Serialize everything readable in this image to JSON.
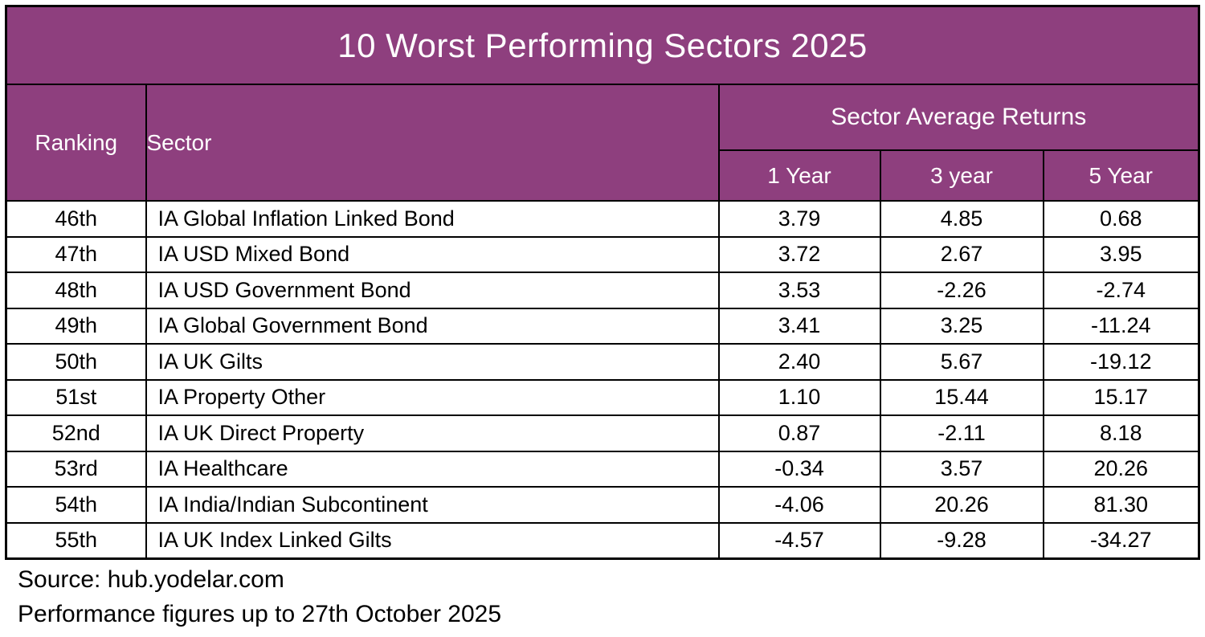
{
  "title": "10 Worst Performing Sectors 2025",
  "colors": {
    "header_background": "#8E3F7E",
    "header_text": "#FFFFFF",
    "grid_border": "#000000",
    "body_text": "#000000",
    "row_background": "#FFFFFF"
  },
  "headers": {
    "ranking": "Ranking",
    "sector": "Sector",
    "returns_group": "Sector Average Returns",
    "year1": "1 Year",
    "year3": "3 year",
    "year5": "5 Year"
  },
  "table": {
    "rows": [
      {
        "rank": "46th",
        "sector": "IA Global Inflation Linked Bond",
        "y1": "3.79",
        "y3": "4.85",
        "y5": "0.68"
      },
      {
        "rank": "47th",
        "sector": "IA USD Mixed Bond",
        "y1": "3.72",
        "y3": "2.67",
        "y5": "3.95"
      },
      {
        "rank": "48th",
        "sector": "IA USD Government Bond",
        "y1": "3.53",
        "y3": "-2.26",
        "y5": "-2.74"
      },
      {
        "rank": "49th",
        "sector": "IA Global Government Bond",
        "y1": "3.41",
        "y3": "3.25",
        "y5": "-11.24"
      },
      {
        "rank": "50th",
        "sector": "IA UK Gilts",
        "y1": "2.40",
        "y3": "5.67",
        "y5": "-19.12"
      },
      {
        "rank": "51st",
        "sector": "IA Property Other",
        "y1": "1.10",
        "y3": "15.44",
        "y5": "15.17"
      },
      {
        "rank": "52nd",
        "sector": "IA UK Direct Property",
        "y1": "0.87",
        "y3": "-2.11",
        "y5": "8.18"
      },
      {
        "rank": "53rd",
        "sector": "IA Healthcare",
        "y1": "-0.34",
        "y3": "3.57",
        "y5": "20.26"
      },
      {
        "rank": "54th",
        "sector": "IA India/Indian Subcontinent",
        "y1": "-4.06",
        "y3": "20.26",
        "y5": "81.30"
      },
      {
        "rank": "55th",
        "sector": "IA UK Index Linked Gilts",
        "y1": "-4.57",
        "y3": "-9.28",
        "y5": "-34.27"
      }
    ]
  },
  "footer": {
    "source": "Source: hub.yodelar.com",
    "note": "Performance figures up to 27th October 2025"
  },
  "chart_data": {
    "type": "table",
    "title": "10 Worst Performing Sectors 2025",
    "columns": [
      "Ranking",
      "Sector",
      "1 Year",
      "3 year",
      "5 Year"
    ],
    "column_group": {
      "label": "Sector Average Returns",
      "spans": [
        "1 Year",
        "3 year",
        "5 Year"
      ]
    },
    "rows": [
      [
        "46th",
        "IA Global Inflation Linked Bond",
        3.79,
        4.85,
        0.68
      ],
      [
        "47th",
        "IA USD Mixed Bond",
        3.72,
        2.67,
        3.95
      ],
      [
        "48th",
        "IA USD Government Bond",
        3.53,
        -2.26,
        -2.74
      ],
      [
        "49th",
        "IA Global Government Bond",
        3.41,
        3.25,
        -11.24
      ],
      [
        "50th",
        "IA UK Gilts",
        2.4,
        5.67,
        -19.12
      ],
      [
        "51st",
        "IA Property Other",
        1.1,
        15.44,
        15.17
      ],
      [
        "52nd",
        "IA UK Direct Property",
        0.87,
        -2.11,
        8.18
      ],
      [
        "53rd",
        "IA Healthcare",
        -0.34,
        3.57,
        20.26
      ],
      [
        "54th",
        "IA India/Indian Subcontinent",
        -4.06,
        20.26,
        81.3
      ],
      [
        "55th",
        "IA UK Index Linked Gilts",
        -4.57,
        -9.28,
        -34.27
      ]
    ],
    "source_note": [
      "Source: hub.yodelar.com",
      "Performance figures up to 27th October 2025"
    ]
  }
}
